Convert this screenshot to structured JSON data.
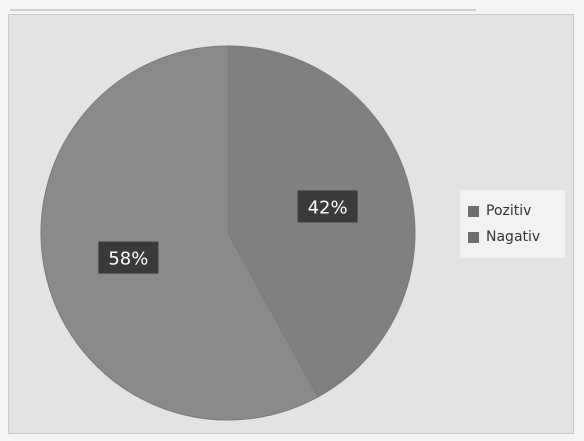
{
  "chart_data": {
    "type": "pie",
    "title": "",
    "series": [
      {
        "name": "Pozitiv",
        "value": 42,
        "label": "42%",
        "color": "#808080"
      },
      {
        "name": "Nagativ",
        "value": 58,
        "label": "58%",
        "color": "#8a8a8a"
      }
    ],
    "legend": {
      "placement": "right"
    }
  }
}
